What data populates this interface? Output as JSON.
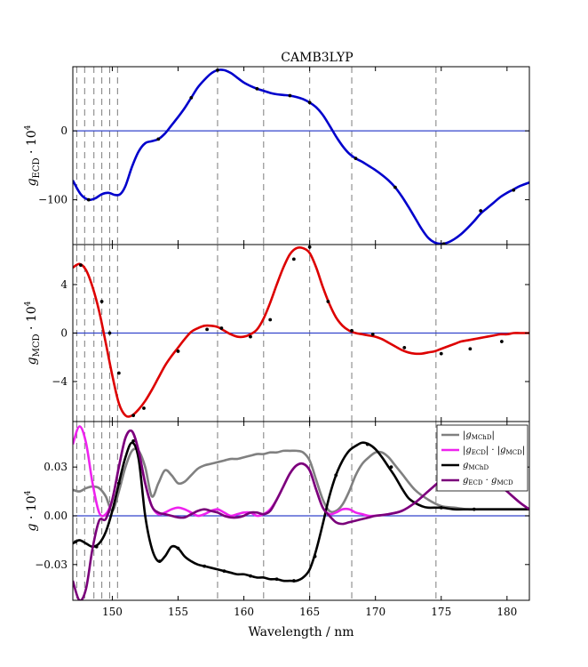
{
  "chart_data": [
    {
      "type": "line",
      "title": "CAMB3LYP",
      "ylabel_main": "g",
      "ylabel_sub": "ECD",
      "ylabel_tail": "· 10",
      "ylabel_exp": "4",
      "xlim": [
        147,
        181.7
      ],
      "ylim": [
        -165,
        93
      ],
      "yticks": [
        -100,
        0
      ],
      "ytick_labels": [
        "−100",
        "0"
      ],
      "zero_line_color": "#3344cc",
      "series": [
        {
          "color": "#0000cc",
          "x": [
            147.0,
            147.6,
            148.2,
            148.7,
            149.2,
            149.7,
            150.2,
            150.6,
            151.0,
            151.5,
            152.0,
            152.5,
            153.0,
            153.5,
            154.0,
            154.5,
            155.0,
            155.5,
            156.0,
            156.5,
            157.0,
            157.5,
            158.0,
            158.5,
            159.0,
            159.5,
            160.0,
            160.5,
            161.0,
            161.5,
            162.0,
            162.5,
            163.0,
            163.5,
            164.0,
            164.5,
            165.0,
            165.5,
            166.0,
            166.5,
            167.0,
            167.5,
            168.0,
            168.5,
            169.0,
            169.5,
            170.0,
            170.5,
            171.0,
            171.5,
            172.0,
            172.5,
            173.0,
            173.5,
            174.0,
            174.5,
            175.0,
            175.5,
            176.0,
            176.5,
            177.0,
            177.5,
            178.0,
            178.5,
            179.0,
            179.5,
            180.0,
            180.5,
            181.0,
            181.7
          ],
          "y": [
            -72,
            -92,
            -100,
            -98,
            -92,
            -90,
            -93,
            -92,
            -80,
            -52,
            -30,
            -18,
            -15,
            -12,
            -4,
            8,
            20,
            33,
            48,
            63,
            74,
            83,
            88,
            88,
            84,
            77,
            70,
            65,
            61,
            58,
            55,
            53,
            52,
            51,
            49,
            46,
            41,
            34,
            23,
            8,
            -8,
            -22,
            -33,
            -40,
            -45,
            -51,
            -57,
            -64,
            -72,
            -82,
            -95,
            -110,
            -126,
            -142,
            -155,
            -162,
            -164,
            -162,
            -157,
            -150,
            -141,
            -131,
            -120,
            -112,
            -104,
            -96,
            -90,
            -85,
            -80,
            -75
          ],
          "dots_x": [
            148.2,
            153.5,
            156.0,
            158.0,
            161.0,
            163.5,
            165.0,
            168.5,
            171.5,
            175.2,
            178.0,
            180.5
          ],
          "dots_y": [
            -100,
            -12,
            48,
            88,
            61,
            51,
            41,
            -40,
            -82,
            -164,
            -116,
            -86
          ]
        }
      ]
    },
    {
      "type": "line",
      "ylabel_main": "g",
      "ylabel_sub": "MCD",
      "ylabel_tail": "· 10",
      "ylabel_exp": "4",
      "xlim": [
        147,
        181.7
      ],
      "ylim": [
        -7.3,
        7.3
      ],
      "yticks": [
        -4,
        0,
        4
      ],
      "ytick_labels": [
        "−4",
        "0",
        "4"
      ],
      "zero_line_color": "#3344cc",
      "series": [
        {
          "color": "#dd0000",
          "x": [
            147.0,
            147.5,
            148.0,
            148.5,
            149.0,
            149.5,
            150.0,
            150.5,
            151.0,
            151.5,
            152.0,
            152.5,
            153.0,
            153.5,
            154.0,
            154.5,
            155.0,
            155.5,
            156.0,
            156.5,
            157.0,
            157.5,
            158.0,
            158.5,
            159.0,
            159.5,
            160.0,
            160.5,
            161.0,
            161.5,
            162.0,
            162.5,
            163.0,
            163.5,
            164.0,
            164.5,
            165.0,
            165.5,
            166.0,
            166.5,
            167.0,
            167.5,
            168.0,
            168.5,
            169.0,
            169.5,
            170.0,
            170.5,
            171.0,
            171.5,
            172.0,
            172.5,
            173.0,
            173.5,
            174.0,
            174.5,
            175.0,
            175.5,
            176.0,
            176.5,
            177.0,
            177.5,
            178.0,
            178.5,
            179.0,
            179.5,
            180.0,
            180.5,
            181.0,
            181.7
          ],
          "y": [
            5.4,
            5.7,
            5.2,
            3.8,
            1.8,
            -0.8,
            -3.5,
            -5.8,
            -6.8,
            -6.8,
            -6.3,
            -5.6,
            -4.7,
            -3.7,
            -2.7,
            -1.9,
            -1.2,
            -0.5,
            0.1,
            0.4,
            0.6,
            0.6,
            0.5,
            0.2,
            -0.1,
            -0.3,
            -0.3,
            -0.1,
            0.3,
            1.2,
            2.5,
            4.0,
            5.4,
            6.5,
            7.0,
            7.0,
            6.6,
            5.4,
            3.8,
            2.4,
            1.3,
            0.6,
            0.2,
            0.0,
            -0.1,
            -0.2,
            -0.3,
            -0.5,
            -0.8,
            -1.1,
            -1.4,
            -1.6,
            -1.7,
            -1.7,
            -1.6,
            -1.5,
            -1.3,
            -1.1,
            -0.9,
            -0.7,
            -0.6,
            -0.5,
            -0.4,
            -0.3,
            -0.2,
            -0.1,
            -0.1,
            0.0,
            0.0,
            0.0
          ],
          "dots_x": [
            147.6,
            149.2,
            149.8,
            150.5,
            151.6,
            152.4,
            155.0,
            157.2,
            158.3,
            160.5,
            162.0,
            163.8,
            165.0,
            166.4,
            168.2,
            169.8,
            172.2,
            175.0,
            177.2,
            179.6
          ],
          "dots_y": [
            5.6,
            2.6,
            0.0,
            -3.3,
            -6.8,
            -6.2,
            -1.5,
            0.3,
            0.4,
            -0.3,
            1.1,
            6.1,
            7.1,
            2.6,
            0.2,
            -0.1,
            -1.2,
            -1.7,
            -1.3,
            -0.7
          ]
        }
      ]
    },
    {
      "type": "line",
      "ylabel_main": "g",
      "ylabel_sub": "",
      "ylabel_tail": "· 10",
      "ylabel_exp": "4",
      "xlabel": "Wavelength / nm",
      "xlim": [
        147,
        181.7
      ],
      "ylim": [
        -0.052,
        0.058
      ],
      "yticks": [
        -0.03,
        0.0,
        0.03
      ],
      "ytick_labels": [
        "−0.03",
        "0.00",
        "0.03"
      ],
      "xticks": [
        150,
        155,
        160,
        165,
        170,
        175,
        180
      ],
      "xtick_labels": [
        "150",
        "155",
        "160",
        "165",
        "170",
        "175",
        "180"
      ],
      "zero_line_color": "#3344cc",
      "legend_position": "top-right",
      "legend": [
        {
          "label_main": "|g",
          "label_sub": "MChD",
          "label_tail": "|",
          "color": "#808080"
        },
        {
          "label_main": "|g",
          "label_sub": "ECD",
          "label_tail": "| · |g",
          "label_sub2": "MCD",
          "label_tail2": "|",
          "color": "#ee22ee"
        },
        {
          "label_main": "g",
          "label_sub": "MChD",
          "label_tail": "",
          "color": "#000000"
        },
        {
          "label_main": "g",
          "label_sub": "ECD",
          "label_tail": " · g",
          "label_sub2": "MCD",
          "label_tail2": "",
          "color": "#7a007a"
        }
      ],
      "series": [
        {
          "color": "#808080",
          "x": [
            147.0,
            147.5,
            148.0,
            148.5,
            149.0,
            149.5,
            150.0,
            150.5,
            151.0,
            151.5,
            152.0,
            152.5,
            153.0,
            153.5,
            154.0,
            154.5,
            155.0,
            155.5,
            156.0,
            156.5,
            157.0,
            157.5,
            158.0,
            158.5,
            159.0,
            159.5,
            160.0,
            160.5,
            161.0,
            161.5,
            162.0,
            162.5,
            163.0,
            163.5,
            164.0,
            164.5,
            165.0,
            165.5,
            166.0,
            166.5,
            167.0,
            167.5,
            168.0,
            168.5,
            169.0,
            169.5,
            170.0,
            170.5,
            171.0,
            171.5,
            172.0,
            173.0,
            174.0,
            175.0,
            176.0,
            177.0,
            178.0,
            179.0,
            180.0,
            181.0,
            181.7
          ],
          "y": [
            0.016,
            0.015,
            0.017,
            0.018,
            0.017,
            0.012,
            0.003,
            0.015,
            0.03,
            0.04,
            0.04,
            0.03,
            0.012,
            0.02,
            0.028,
            0.025,
            0.02,
            0.021,
            0.025,
            0.029,
            0.031,
            0.032,
            0.033,
            0.034,
            0.035,
            0.035,
            0.036,
            0.037,
            0.038,
            0.038,
            0.039,
            0.039,
            0.04,
            0.04,
            0.04,
            0.039,
            0.034,
            0.022,
            0.01,
            0.003,
            0.003,
            0.007,
            0.015,
            0.025,
            0.032,
            0.036,
            0.039,
            0.039,
            0.036,
            0.031,
            0.026,
            0.016,
            0.01,
            0.006,
            0.005,
            0.004,
            0.004,
            0.004,
            0.004,
            0.004,
            0.004
          ]
        },
        {
          "color": "#ee22ee",
          "x": [
            147.0,
            147.5,
            148.0,
            148.5,
            149.0,
            149.5,
            150.0,
            150.5,
            151.0,
            151.5,
            152.0,
            152.5,
            153.0,
            153.5,
            154.0,
            154.5,
            155.0,
            155.5,
            156.0,
            156.5,
            157.0,
            157.5,
            158.0,
            158.5,
            159.0,
            159.5,
            160.0,
            160.5,
            161.0,
            161.5,
            162.0,
            162.5,
            163.0,
            163.5,
            164.0,
            164.5,
            165.0,
            165.5,
            166.0,
            166.5,
            167.0,
            167.5,
            168.0,
            168.5,
            169.0,
            169.5,
            170.0,
            171.0,
            172.0,
            173.0,
            174.0,
            175.0,
            176.0,
            177.0,
            178.0,
            179.0,
            180.0,
            181.0,
            181.7
          ],
          "y": [
            0.044,
            0.055,
            0.045,
            0.02,
            0.002,
            0.001,
            0.01,
            0.03,
            0.048,
            0.052,
            0.04,
            0.02,
            0.006,
            0.001,
            0.002,
            0.004,
            0.005,
            0.004,
            0.002,
            0.0,
            0.001,
            0.003,
            0.004,
            0.002,
            0.0,
            0.001,
            0.002,
            0.002,
            0.0,
            0.001,
            0.004,
            0.01,
            0.018,
            0.026,
            0.031,
            0.032,
            0.028,
            0.016,
            0.005,
            0.001,
            0.002,
            0.004,
            0.004,
            0.002,
            0.001,
            0.0,
            0.0,
            0.001,
            0.003,
            0.008,
            0.015,
            0.022,
            0.028,
            0.03,
            0.028,
            0.022,
            0.015,
            0.008,
            0.004
          ]
        },
        {
          "color": "#000000",
          "x": [
            147.0,
            147.5,
            148.0,
            148.5,
            149.0,
            149.5,
            150.0,
            150.5,
            151.0,
            151.5,
            152.0,
            152.5,
            153.0,
            153.5,
            154.0,
            154.5,
            155.0,
            155.5,
            156.0,
            156.5,
            157.0,
            157.5,
            158.0,
            158.5,
            159.0,
            159.5,
            160.0,
            160.5,
            161.0,
            161.5,
            162.0,
            162.5,
            163.0,
            163.5,
            164.0,
            164.5,
            165.0,
            165.5,
            166.0,
            166.5,
            167.0,
            167.5,
            168.0,
            168.5,
            169.0,
            169.5,
            170.0,
            170.5,
            171.0,
            171.5,
            172.0,
            172.5,
            173.0,
            173.5,
            174.0,
            175.0,
            176.0,
            177.0,
            178.0,
            179.0,
            180.0,
            181.0,
            181.7
          ],
          "y": [
            -0.017,
            -0.015,
            -0.017,
            -0.019,
            -0.017,
            -0.01,
            0.003,
            0.02,
            0.036,
            0.045,
            0.035,
            0.0,
            -0.02,
            -0.028,
            -0.025,
            -0.019,
            -0.02,
            -0.025,
            -0.028,
            -0.03,
            -0.031,
            -0.032,
            -0.033,
            -0.034,
            -0.035,
            -0.036,
            -0.036,
            -0.037,
            -0.038,
            -0.038,
            -0.039,
            -0.039,
            -0.04,
            -0.04,
            -0.04,
            -0.038,
            -0.033,
            -0.021,
            -0.005,
            0.012,
            0.025,
            0.034,
            0.04,
            0.043,
            0.045,
            0.044,
            0.041,
            0.036,
            0.03,
            0.024,
            0.017,
            0.011,
            0.008,
            0.006,
            0.005,
            0.005,
            0.004,
            0.004,
            0.004,
            0.004,
            0.004,
            0.004,
            0.004
          ],
          "dots_x": [
            147.2,
            148.8,
            150.5,
            151.6,
            153.6,
            155.0,
            157.0,
            158.5,
            160.5,
            162.5,
            163.8,
            165.4,
            167.0,
            169.4,
            171.2,
            173.0,
            175.0,
            177.5
          ],
          "dots_y": [
            -0.016,
            -0.019,
            0.02,
            0.046,
            -0.028,
            -0.02,
            -0.031,
            -0.034,
            -0.037,
            -0.039,
            -0.04,
            -0.025,
            0.025,
            0.044,
            0.03,
            0.008,
            0.005,
            0.004
          ]
        },
        {
          "color": "#7a007a",
          "x": [
            147.0,
            147.5,
            148.0,
            148.5,
            149.0,
            149.5,
            150.0,
            150.5,
            151.0,
            151.5,
            152.0,
            152.5,
            153.0,
            153.5,
            154.0,
            154.5,
            155.0,
            155.5,
            156.0,
            156.5,
            157.0,
            157.5,
            158.0,
            158.5,
            159.0,
            159.5,
            160.0,
            160.5,
            161.0,
            161.5,
            162.0,
            162.5,
            163.0,
            163.5,
            164.0,
            164.5,
            165.0,
            165.5,
            166.0,
            166.5,
            167.0,
            167.5,
            168.0,
            168.5,
            169.0,
            169.5,
            170.0,
            171.0,
            172.0,
            173.0,
            174.0,
            175.0,
            176.0,
            177.0,
            178.0,
            179.0,
            180.0,
            181.0,
            181.7
          ],
          "y": [
            -0.04,
            -0.052,
            -0.045,
            -0.02,
            -0.003,
            -0.002,
            0.01,
            0.03,
            0.048,
            0.052,
            0.04,
            0.02,
            0.006,
            0.002,
            0.001,
            0.0,
            -0.001,
            -0.001,
            0.001,
            0.003,
            0.004,
            0.003,
            0.002,
            0.0,
            -0.001,
            -0.001,
            0.0,
            0.002,
            0.002,
            0.001,
            0.003,
            0.01,
            0.018,
            0.026,
            0.031,
            0.032,
            0.028,
            0.016,
            0.005,
            0.0,
            -0.004,
            -0.005,
            -0.004,
            -0.003,
            -0.002,
            -0.001,
            0.0,
            0.001,
            0.003,
            0.008,
            0.015,
            0.022,
            0.028,
            0.03,
            0.028,
            0.022,
            0.015,
            0.008,
            0.004
          ]
        }
      ]
    }
  ],
  "dashed_lines_x": [
    147.3,
    147.9,
    148.6,
    149.2,
    149.8,
    150.4,
    158.0,
    161.5,
    165.0,
    168.2,
    174.6
  ],
  "dashed_line_color": "#888888"
}
